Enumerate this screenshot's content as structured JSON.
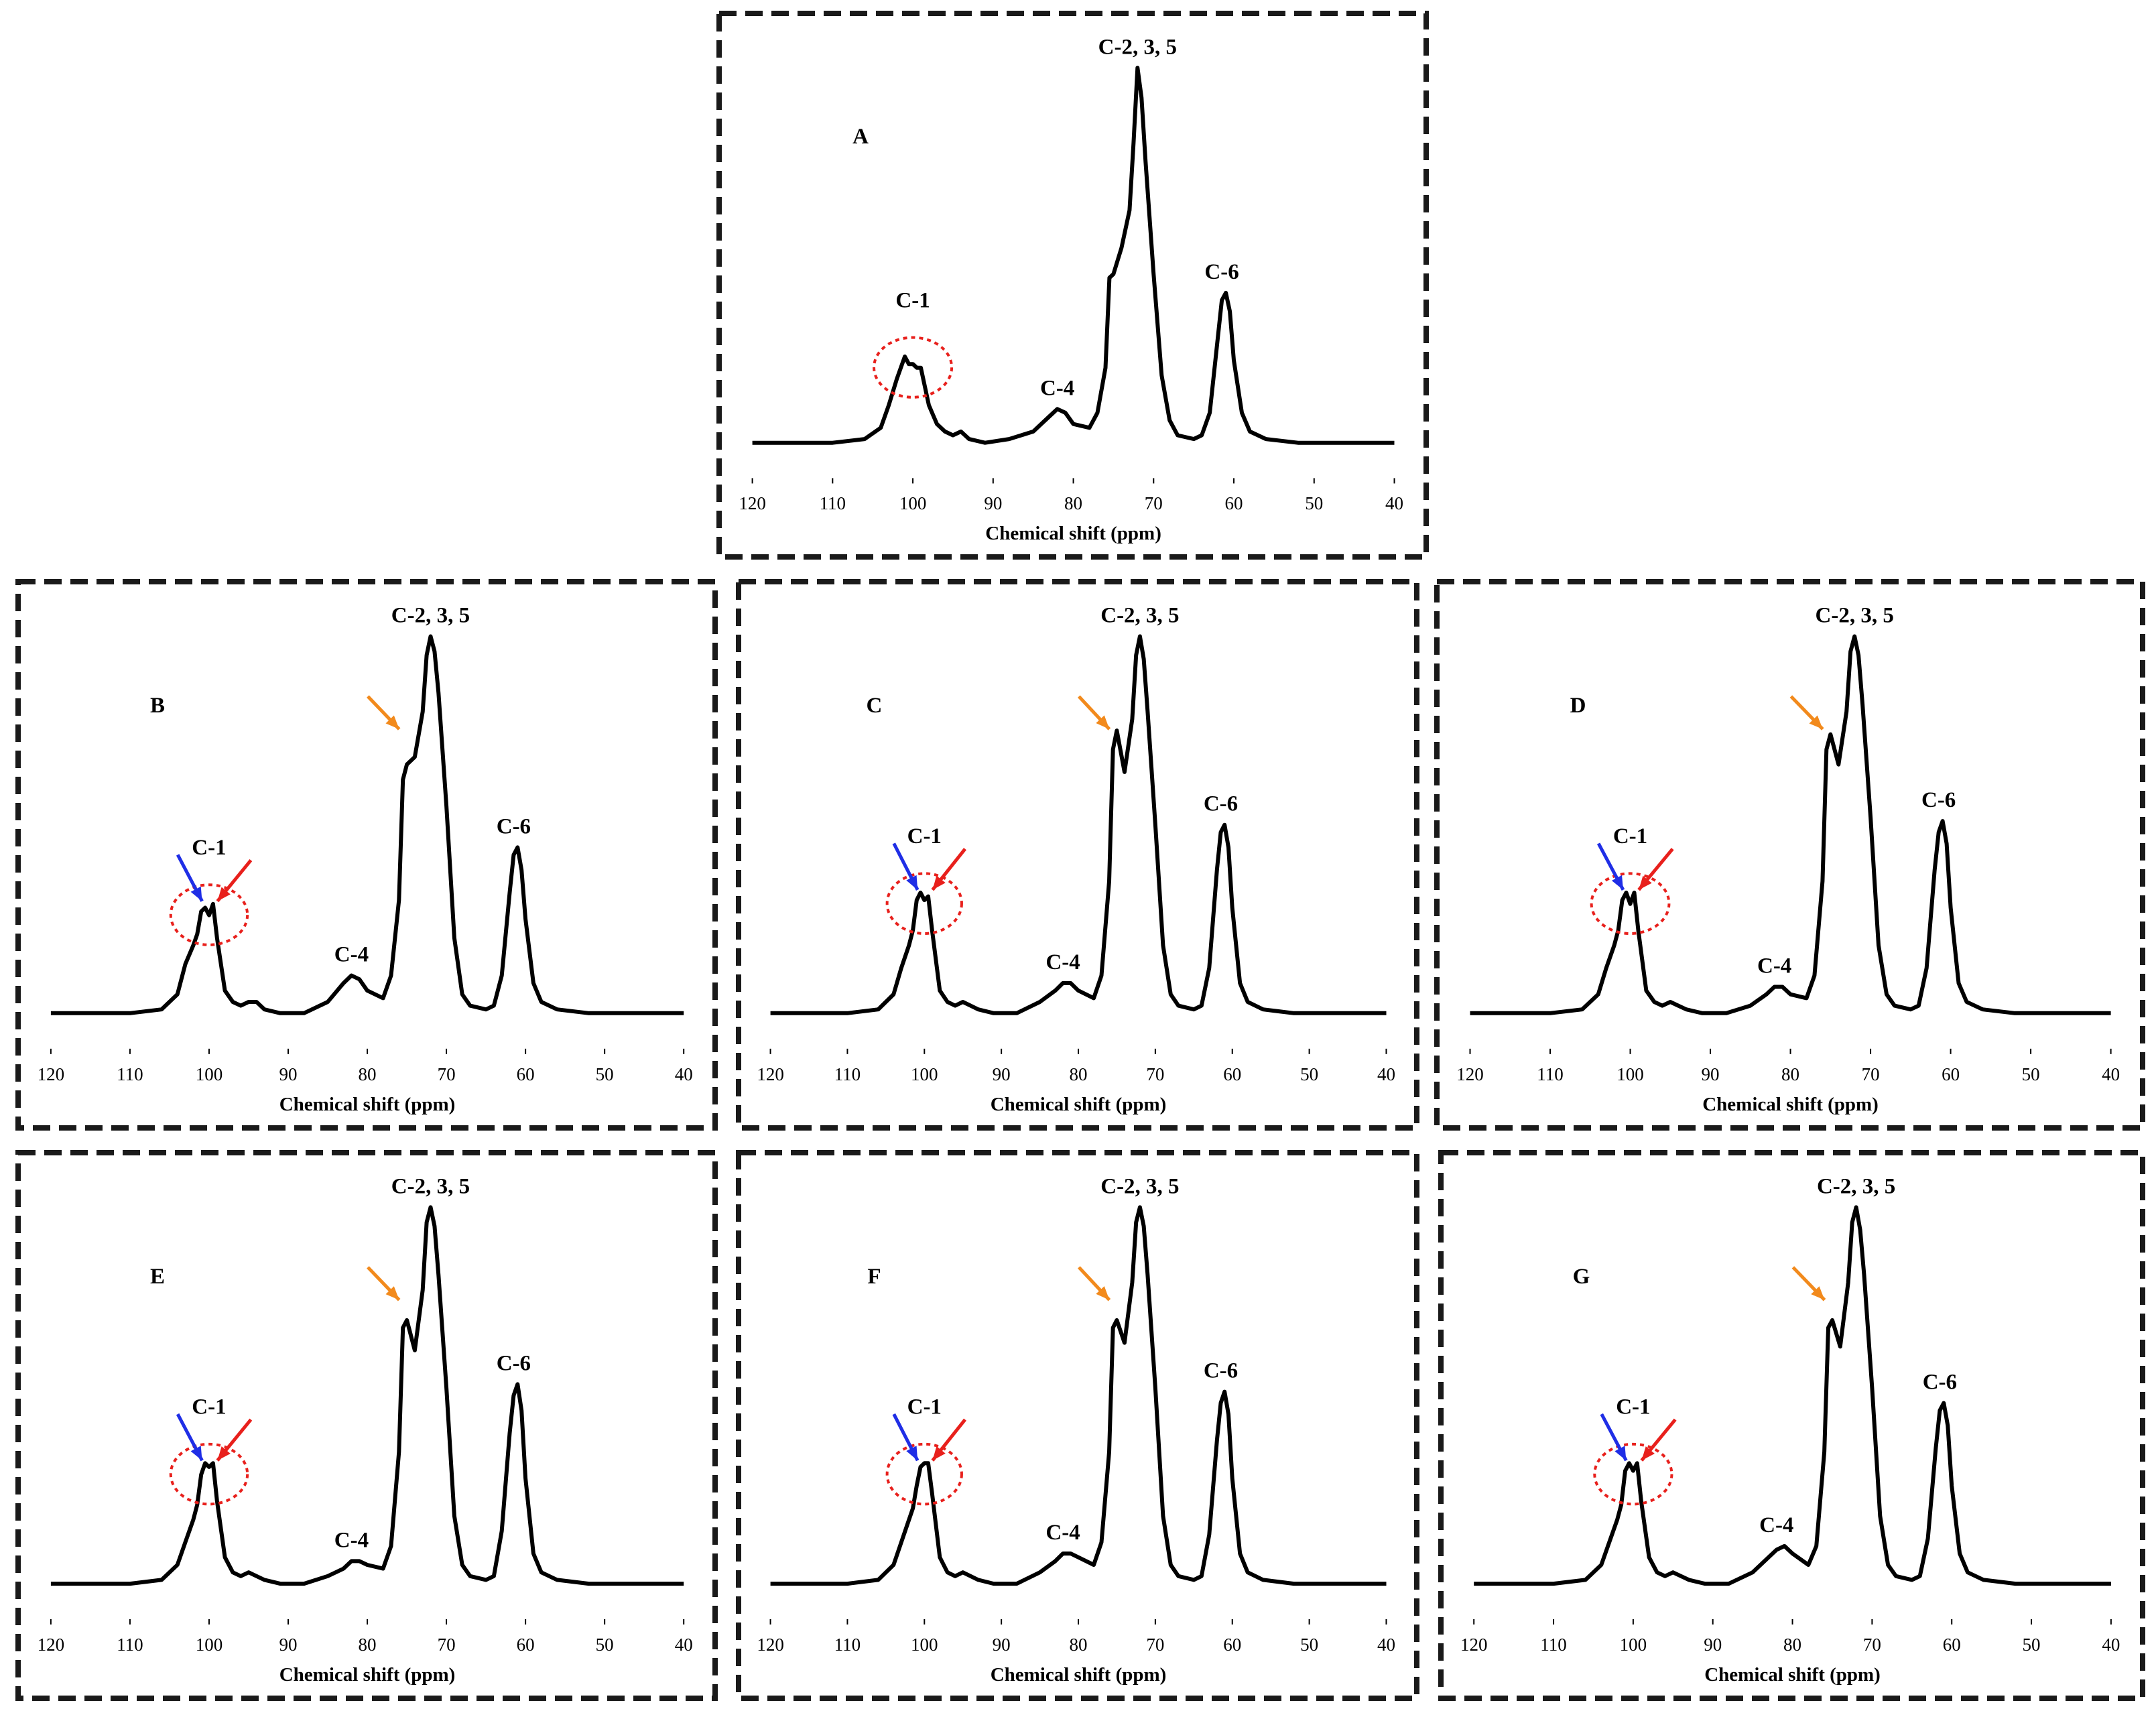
{
  "chart_data": [
    {
      "type": "line",
      "title": "A",
      "xlabel": "Chemical shift (ppm)",
      "color": "#000000",
      "xlim": [
        120,
        40
      ],
      "xticks": [
        120,
        110,
        100,
        90,
        80,
        70,
        60,
        50,
        40
      ],
      "x": [
        120,
        115,
        110,
        106,
        104,
        103,
        102,
        101.5,
        101,
        100.5,
        100,
        99.5,
        99,
        98,
        97,
        96,
        95,
        94,
        93,
        91,
        88,
        85,
        83,
        82,
        81,
        80,
        78,
        77,
        76,
        75.5,
        75,
        74,
        73,
        72.5,
        72,
        71.5,
        71,
        70,
        69,
        68,
        67,
        65,
        64,
        63,
        62,
        61.5,
        61,
        60.5,
        60,
        59,
        58,
        56,
        52,
        48,
        44,
        40
      ],
      "values": [
        0,
        0,
        0,
        1,
        4,
        10,
        17,
        20,
        23,
        21,
        21,
        20,
        20,
        10,
        5,
        3,
        2,
        3,
        1,
        0,
        1,
        3,
        7,
        9,
        8,
        5,
        4,
        8,
        20,
        44,
        45,
        52,
        62,
        80,
        100,
        92,
        75,
        45,
        18,
        6,
        2,
        1,
        2,
        8,
        28,
        38,
        40,
        35,
        22,
        8,
        3,
        1,
        0,
        0,
        0,
        0
      ],
      "annotations": [
        {
          "text": "C-1",
          "x": 100
        },
        {
          "text": "C-4",
          "x": 82
        },
        {
          "text": "C-2, 3, 5",
          "x": 72
        },
        {
          "text": "C-6",
          "x": 61.5
        }
      ]
    },
    {
      "type": "line",
      "title": "B",
      "xlabel": "Chemical shift (ppm)",
      "color": "#000000",
      "xlim": [
        120,
        40
      ],
      "xticks": [
        120,
        110,
        100,
        90,
        80,
        70,
        60,
        50,
        40
      ],
      "x": [
        120,
        115,
        110,
        106,
        104,
        103,
        102,
        101.5,
        101,
        100.5,
        100,
        99.5,
        99,
        98,
        97,
        96,
        95,
        94,
        93,
        91,
        88,
        85,
        83,
        82,
        81,
        80,
        78,
        77,
        76,
        75.5,
        75,
        74,
        73,
        72.5,
        72,
        71.5,
        71,
        70,
        69,
        68,
        67,
        65,
        64,
        63,
        62,
        61.5,
        61,
        60.5,
        60,
        59,
        58,
        56,
        52,
        48,
        44,
        40
      ],
      "values": [
        0,
        0,
        0,
        1,
        5,
        13,
        18,
        21,
        27,
        28,
        26,
        29,
        20,
        6,
        3,
        2,
        3,
        3,
        1,
        0,
        0,
        3,
        8,
        10,
        9,
        6,
        4,
        10,
        30,
        62,
        66,
        68,
        80,
        95,
        100,
        96,
        85,
        55,
        20,
        5,
        2,
        1,
        2,
        10,
        32,
        42,
        44,
        38,
        25,
        8,
        3,
        1,
        0,
        0,
        0,
        0
      ],
      "annotations": [
        {
          "text": "C-1",
          "x": 100
        },
        {
          "text": "C-4",
          "x": 82
        },
        {
          "text": "C-2, 3, 5",
          "x": 72
        },
        {
          "text": "C-6",
          "x": 61.5
        }
      ]
    },
    {
      "type": "line",
      "title": "C",
      "xlabel": "Chemical shift (ppm)",
      "color": "#000000",
      "xlim": [
        120,
        40
      ],
      "xticks": [
        120,
        110,
        100,
        90,
        80,
        70,
        60,
        50,
        40
      ],
      "x": [
        120,
        115,
        110,
        106,
        104,
        103,
        102,
        101.5,
        101,
        100.5,
        100,
        99.5,
        99,
        98,
        97,
        96,
        95,
        94,
        93,
        91,
        88,
        85,
        83,
        82,
        81,
        80,
        78,
        77,
        76,
        75.5,
        75,
        74,
        73,
        72.5,
        72,
        71.5,
        71,
        70,
        69,
        68,
        67,
        65,
        64,
        63,
        62,
        61.5,
        61,
        60.5,
        60,
        59,
        58,
        56,
        52,
        48,
        44,
        40
      ],
      "values": [
        0,
        0,
        0,
        1,
        5,
        12,
        18,
        22,
        30,
        32,
        30,
        31,
        22,
        6,
        3,
        2,
        3,
        2,
        1,
        0,
        0,
        3,
        6,
        8,
        8,
        6,
        4,
        10,
        35,
        70,
        75,
        64,
        78,
        95,
        100,
        94,
        80,
        50,
        18,
        5,
        2,
        1,
        2,
        12,
        38,
        48,
        50,
        44,
        28,
        8,
        3,
        1,
        0,
        0,
        0,
        0
      ],
      "annotations": [
        {
          "text": "C-1",
          "x": 100
        },
        {
          "text": "C-4",
          "x": 82
        },
        {
          "text": "C-2, 3, 5",
          "x": 72
        },
        {
          "text": "C-6",
          "x": 61.5
        }
      ]
    },
    {
      "type": "line",
      "title": "D",
      "xlabel": "Chemical shift (ppm)",
      "color": "#000000",
      "xlim": [
        120,
        40
      ],
      "xticks": [
        120,
        110,
        100,
        90,
        80,
        70,
        60,
        50,
        40
      ],
      "x": [
        120,
        115,
        110,
        106,
        104,
        103,
        102,
        101.5,
        101,
        100.5,
        100,
        99.5,
        99,
        98,
        97,
        96,
        95,
        94,
        93,
        91,
        88,
        85,
        83,
        82,
        81,
        80,
        78,
        77,
        76,
        75.5,
        75,
        74,
        73,
        72.5,
        72,
        71.5,
        71,
        70,
        69,
        68,
        67,
        65,
        64,
        63,
        62,
        61.5,
        61,
        60.5,
        60,
        59,
        58,
        56,
        52,
        48,
        44,
        40
      ],
      "values": [
        0,
        0,
        0,
        1,
        5,
        12,
        18,
        22,
        30,
        32,
        29,
        32,
        22,
        6,
        3,
        2,
        3,
        2,
        1,
        0,
        0,
        2,
        5,
        7,
        7,
        5,
        4,
        10,
        35,
        70,
        74,
        66,
        80,
        96,
        100,
        95,
        82,
        52,
        18,
        5,
        2,
        1,
        2,
        12,
        38,
        48,
        51,
        45,
        28,
        8,
        3,
        1,
        0,
        0,
        0,
        0
      ],
      "annotations": [
        {
          "text": "C-1",
          "x": 100
        },
        {
          "text": "C-4",
          "x": 82
        },
        {
          "text": "C-2, 3, 5",
          "x": 72
        },
        {
          "text": "C-6",
          "x": 61.5
        }
      ]
    },
    {
      "type": "line",
      "title": "E",
      "xlabel": "Chemical shift (ppm)",
      "color": "#000000",
      "xlim": [
        120,
        40
      ],
      "xticks": [
        120,
        110,
        100,
        90,
        80,
        70,
        60,
        50,
        40
      ],
      "x": [
        120,
        115,
        110,
        106,
        104,
        103,
        102,
        101.5,
        101,
        100.5,
        100,
        99.5,
        99,
        98,
        97,
        96,
        95,
        94,
        93,
        91,
        88,
        85,
        83,
        82,
        81,
        80,
        78,
        77,
        76,
        75.5,
        75,
        74,
        73,
        72.5,
        72,
        71.5,
        71,
        70,
        69,
        68,
        67,
        65,
        64,
        63,
        62,
        61.5,
        61,
        60.5,
        60,
        59,
        58,
        56,
        52,
        48,
        44,
        40
      ],
      "values": [
        0,
        0,
        0,
        1,
        5,
        11,
        17,
        21,
        29,
        32,
        31,
        32,
        22,
        7,
        3,
        2,
        3,
        2,
        1,
        0,
        0,
        2,
        4,
        6,
        6,
        5,
        4,
        10,
        35,
        68,
        70,
        62,
        78,
        96,
        100,
        95,
        82,
        52,
        18,
        5,
        2,
        1,
        2,
        14,
        40,
        50,
        53,
        46,
        28,
        8,
        3,
        1,
        0,
        0,
        0,
        0
      ],
      "annotations": [
        {
          "text": "C-1",
          "x": 100
        },
        {
          "text": "C-4",
          "x": 82
        },
        {
          "text": "C-2, 3, 5",
          "x": 72
        },
        {
          "text": "C-6",
          "x": 61.5
        }
      ]
    },
    {
      "type": "line",
      "title": "F",
      "xlabel": "Chemical shift (ppm)",
      "color": "#000000",
      "xlim": [
        120,
        40
      ],
      "xticks": [
        120,
        110,
        100,
        90,
        80,
        70,
        60,
        50,
        40
      ],
      "x": [
        120,
        115,
        110,
        106,
        104,
        103,
        102,
        101.5,
        101,
        100.5,
        100,
        99.5,
        99,
        98,
        97,
        96,
        95,
        94,
        93,
        91,
        88,
        85,
        83,
        82,
        81,
        80,
        78,
        77,
        76,
        75.5,
        75,
        74,
        73,
        72.5,
        72,
        71.5,
        71,
        70,
        69,
        68,
        67,
        65,
        64,
        63,
        62,
        61.5,
        61,
        60.5,
        60,
        59,
        58,
        56,
        52,
        48,
        44,
        40
      ],
      "values": [
        0,
        0,
        0,
        1,
        5,
        11,
        17,
        20,
        26,
        31,
        32,
        32,
        24,
        7,
        3,
        2,
        3,
        2,
        1,
        0,
        0,
        3,
        6,
        8,
        8,
        7,
        5,
        11,
        35,
        68,
        70,
        64,
        80,
        96,
        100,
        95,
        82,
        52,
        18,
        5,
        2,
        1,
        2,
        13,
        38,
        48,
        51,
        45,
        28,
        8,
        3,
        1,
        0,
        0,
        0,
        0
      ],
      "annotations": [
        {
          "text": "C-1",
          "x": 100
        },
        {
          "text": "C-4",
          "x": 82
        },
        {
          "text": "C-2, 3, 5",
          "x": 72
        },
        {
          "text": "C-6",
          "x": 61.5
        }
      ]
    },
    {
      "type": "line",
      "title": "G",
      "xlabel": "Chemical shift (ppm)",
      "color": "#000000",
      "xlim": [
        120,
        40
      ],
      "xticks": [
        120,
        110,
        100,
        90,
        80,
        70,
        60,
        50,
        40
      ],
      "x": [
        120,
        115,
        110,
        106,
        104,
        103,
        102,
        101.5,
        101,
        100.5,
        100,
        99.5,
        99,
        98,
        97,
        96,
        95,
        94,
        93,
        91,
        88,
        85,
        83,
        82,
        81,
        80,
        78,
        77,
        76,
        75.5,
        75,
        74,
        73,
        72.5,
        72,
        71.5,
        71,
        70,
        69,
        68,
        67,
        65,
        64,
        63,
        62,
        61.5,
        61,
        60.5,
        60,
        59,
        58,
        56,
        52,
        48,
        44,
        40
      ],
      "values": [
        0,
        0,
        0,
        1,
        5,
        11,
        17,
        21,
        30,
        32,
        30,
        32,
        22,
        7,
        3,
        2,
        3,
        2,
        1,
        0,
        0,
        3,
        7,
        9,
        10,
        8,
        5,
        10,
        35,
        68,
        70,
        63,
        80,
        96,
        100,
        94,
        82,
        52,
        18,
        5,
        2,
        1,
        2,
        12,
        36,
        46,
        48,
        42,
        26,
        8,
        3,
        1,
        0,
        0,
        0,
        0
      ],
      "annotations": [
        {
          "text": "C-1",
          "x": 100
        },
        {
          "text": "C-4",
          "x": 82
        },
        {
          "text": "C-2, 3, 5",
          "x": 72
        },
        {
          "text": "C-6",
          "x": 61.5
        }
      ]
    }
  ]
}
